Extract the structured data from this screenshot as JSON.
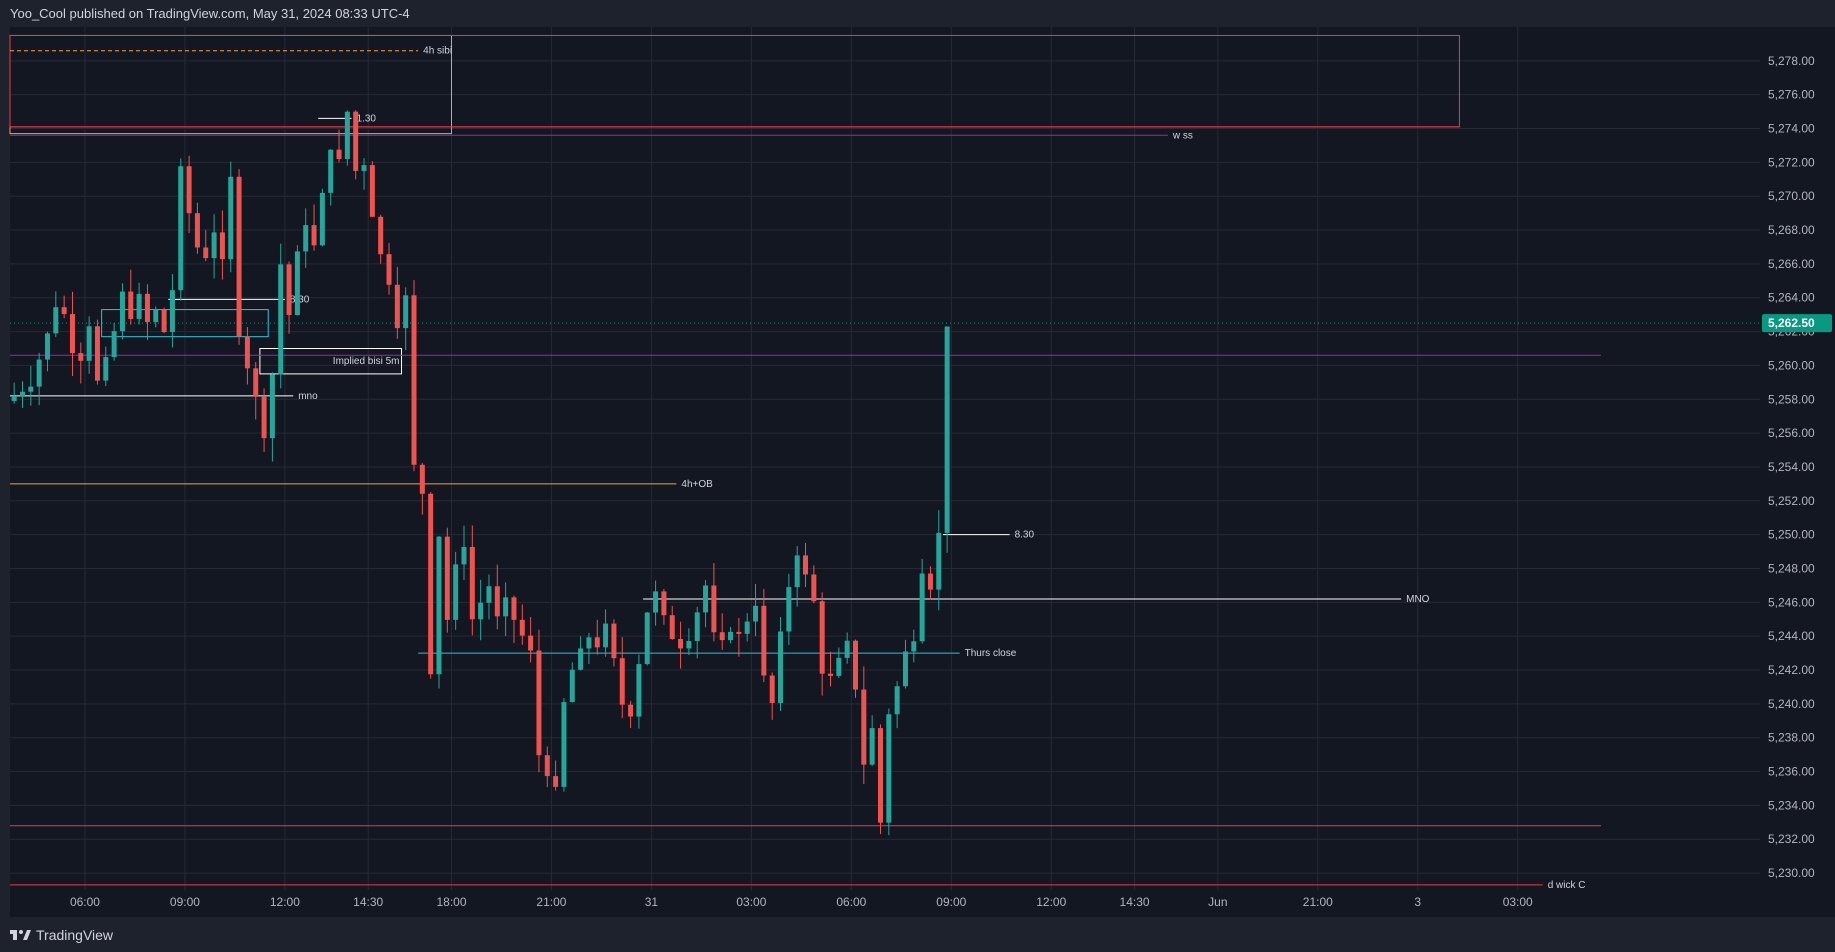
{
  "header": {
    "publisher_text": "Yoo_Cool published on TradingView.com, May 31, 2024 08:33 UTC-4"
  },
  "footer": {
    "brand": "TradingView"
  },
  "colors": {
    "background": "#131722",
    "up": "#26a69a",
    "down": "#ef5350",
    "grid": "#262a35",
    "price_tag": "#089981",
    "orange": "#f7a13b",
    "red": "#f23645",
    "purple": "#9c27b0",
    "white": "#ffffff",
    "teal": "#26c6da"
  },
  "chart_data": {
    "type": "candlestick",
    "symbol_last_price": "5,262.50",
    "ylim": [
      5229,
      5280
    ],
    "y_ticks": [
      "5,230.00",
      "5,232.00",
      "5,234.00",
      "5,236.00",
      "5,238.00",
      "5,240.00",
      "5,242.00",
      "5,244.00",
      "5,246.00",
      "5,248.00",
      "5,250.00",
      "5,252.00",
      "5,254.00",
      "5,256.00",
      "5,258.00",
      "5,260.00",
      "5,262.00",
      "5,264.00",
      "5,266.00",
      "5,268.00",
      "5,270.00",
      "5,272.00",
      "5,274.00",
      "5,276.00",
      "5,278.00"
    ],
    "x_ticks": [
      {
        "label": "06:00",
        "bar": 9
      },
      {
        "label": "09:00",
        "bar": 21
      },
      {
        "label": "12:00",
        "bar": 33
      },
      {
        "label": "14:30",
        "bar": 43
      },
      {
        "label": "18:00",
        "bar": 53
      },
      {
        "label": "21:00",
        "bar": 65
      },
      {
        "label": "31",
        "bar": 77
      },
      {
        "label": "03:00",
        "bar": 89
      },
      {
        "label": "06:00",
        "bar": 101
      },
      {
        "label": "09:00",
        "bar": 113
      },
      {
        "label": "12:00",
        "bar": 125
      },
      {
        "label": "14:30",
        "bar": 135
      },
      {
        "label": "Jun",
        "bar": 145
      },
      {
        "label": "21:00",
        "bar": 157
      },
      {
        "label": "3",
        "bar": 169
      },
      {
        "label": "03:00",
        "bar": 181
      }
    ],
    "bar_count": 191,
    "closes": [
      [
        0,
        5258.2
      ],
      [
        2,
        5259.0
      ],
      [
        4,
        5261.8
      ],
      [
        5,
        5263.6
      ],
      [
        6,
        5263.0
      ],
      [
        7,
        5261.0
      ],
      [
        8,
        5260.5
      ],
      [
        9,
        5262.5
      ],
      [
        10,
        5259.0
      ],
      [
        11,
        5260.2
      ],
      [
        12,
        5262.0
      ],
      [
        13,
        5264.2
      ],
      [
        14,
        5263.0
      ],
      [
        15,
        5264.0
      ],
      [
        16,
        5262.5
      ],
      [
        17,
        5263.2
      ],
      [
        18,
        5262.0
      ],
      [
        19,
        5264.5
      ],
      [
        20,
        5271.5
      ],
      [
        21,
        5269.0
      ],
      [
        22,
        5267.0
      ],
      [
        23,
        5266.5
      ],
      [
        24,
        5268.0
      ],
      [
        25,
        5266.0
      ],
      [
        26,
        5271.0
      ],
      [
        27,
        5262.0
      ],
      [
        28,
        5260.0
      ],
      [
        29,
        5258.0
      ],
      [
        30,
        5256.0
      ],
      [
        31,
        5259.5
      ],
      [
        32,
        5266.0
      ],
      [
        33,
        5263.0
      ],
      [
        34,
        5266.5
      ],
      [
        35,
        5268.5
      ],
      [
        36,
        5267.0
      ],
      [
        37,
        5270.0
      ],
      [
        38,
        5273.0
      ],
      [
        39,
        5272.0
      ],
      [
        40,
        5275.0
      ],
      [
        41,
        5271.5
      ],
      [
        42,
        5272.0
      ],
      [
        43,
        5269.0
      ],
      [
        44,
        5266.5
      ],
      [
        45,
        5265.0
      ],
      [
        46,
        5262.5
      ],
      [
        47,
        5264.0
      ],
      [
        48,
        5254.0
      ],
      [
        49,
        5252.5
      ],
      [
        50,
        5242.0
      ],
      [
        51,
        5250.0
      ],
      [
        52,
        5245.0
      ],
      [
        53,
        5248.0
      ],
      [
        54,
        5249.5
      ],
      [
        55,
        5245.0
      ],
      [
        56,
        5246.0
      ],
      [
        57,
        5247.0
      ],
      [
        58,
        5245.0
      ],
      [
        59,
        5246.0
      ],
      [
        60,
        5245.0
      ],
      [
        61,
        5244.0
      ],
      [
        62,
        5243.0
      ],
      [
        63,
        5237.0
      ],
      [
        64,
        5236.0
      ],
      [
        65,
        5234.8
      ],
      [
        66,
        5240.0
      ],
      [
        67,
        5242.0
      ],
      [
        68,
        5243.0
      ],
      [
        69,
        5244.0
      ],
      [
        70,
        5243.5
      ],
      [
        71,
        5244.5
      ],
      [
        72,
        5242.5
      ],
      [
        73,
        5240.0
      ],
      [
        74,
        5239.5
      ],
      [
        75,
        5242.5
      ],
      [
        76,
        5245.5
      ],
      [
        77,
        5246.5
      ],
      [
        78,
        5245.0
      ],
      [
        79,
        5244.0
      ],
      [
        80,
        5243.5
      ],
      [
        81,
        5244.0
      ],
      [
        82,
        5245.5
      ],
      [
        83,
        5247.0
      ],
      [
        84,
        5244.0
      ],
      [
        85,
        5243.5
      ],
      [
        86,
        5244.5
      ],
      [
        87,
        5244.0
      ],
      [
        88,
        5245.0
      ],
      [
        89,
        5246.0
      ],
      [
        90,
        5241.5
      ],
      [
        91,
        5240.0
      ],
      [
        92,
        5244.0
      ],
      [
        93,
        5247.0
      ],
      [
        94,
        5249.0
      ],
      [
        95,
        5247.5
      ],
      [
        96,
        5246.0
      ],
      [
        97,
        5242.0
      ],
      [
        98,
        5241.5
      ],
      [
        99,
        5242.5
      ],
      [
        100,
        5243.5
      ],
      [
        101,
        5241.0
      ],
      [
        102,
        5236.5
      ],
      [
        103,
        5238.5
      ],
      [
        104,
        5233.0
      ],
      [
        105,
        5239.5
      ],
      [
        106,
        5241.0
      ],
      [
        107,
        5243.0
      ],
      [
        108,
        5244.0
      ],
      [
        109,
        5248.0
      ],
      [
        110,
        5247.0
      ],
      [
        111,
        5250.0
      ],
      [
        112,
        5262.5
      ]
    ],
    "h_lines": [
      {
        "name": "4h-sibi",
        "price": 5278.6,
        "x0_bar": 0,
        "x1_bar": 49,
        "color": "orange",
        "dash": true,
        "label": "4h sibi"
      },
      {
        "name": "1-30",
        "price": 5274.6,
        "x0_bar": 37,
        "x1_bar": 41,
        "color": "white",
        "label": "1.30"
      },
      {
        "name": "w-ss",
        "price": 5273.6,
        "x0_bar": 0,
        "x1_bar": 139,
        "color": "purple",
        "label": "w ss"
      },
      {
        "name": "upper-red",
        "price": 5274.1,
        "x0_bar": 0,
        "x1_bar": 174,
        "color": "red",
        "label": ""
      },
      {
        "name": "8-30-a",
        "price": 5263.9,
        "x0_bar": 19,
        "x1_bar": 33,
        "color": "white",
        "label": "8.30"
      },
      {
        "name": "purple-mid",
        "price": 5260.6,
        "x0_bar": 0,
        "x1_bar": 191,
        "color": "purple",
        "label": ""
      },
      {
        "name": "mno-lower",
        "price": 5258.2,
        "x0_bar": 0,
        "x1_bar": 34,
        "color": "white",
        "label": "mno"
      },
      {
        "name": "4h-ob",
        "price": 5253.0,
        "x0_bar": 0,
        "x1_bar": 80,
        "color": "orange",
        "label": "4h+OB"
      },
      {
        "name": "8-30-b",
        "price": 5250.0,
        "x0_bar": 112,
        "x1_bar": 120,
        "color": "white",
        "label": "8.30"
      },
      {
        "name": "MNO",
        "price": 5246.2,
        "x0_bar": 76,
        "x1_bar": 167,
        "color": "white",
        "label": "MNO"
      },
      {
        "name": "thurs-close",
        "price": 5243.0,
        "x0_bar": 49,
        "x1_bar": 114,
        "color": "teal",
        "label": "Thurs close"
      },
      {
        "name": "lower-red",
        "price": 5232.8,
        "x0_bar": 0,
        "x1_bar": 191,
        "color": "red",
        "label": ""
      },
      {
        "name": "d-wick",
        "price": 5229.3,
        "x0_bar": 0,
        "x1_bar": 184,
        "color": "red",
        "label": "d wick C"
      }
    ],
    "boxes": [
      {
        "name": "implied-bisi-box",
        "x0_bar": 30,
        "x1_bar": 47,
        "p_top": 5261.0,
        "p_bot": 5259.5,
        "color": "white",
        "label": "Implied bisi 5m"
      },
      {
        "name": "teal-fvg-box",
        "x0_bar": 11,
        "x1_bar": 31,
        "p_top": 5263.3,
        "p_bot": 5261.7,
        "color": "teal",
        "label": ""
      },
      {
        "name": "red-orange-box",
        "x0_bar": 0,
        "x1_bar": 53,
        "p_top": 5279.5,
        "p_bot": 5273.7,
        "color": "orange",
        "label": ""
      },
      {
        "name": "red-right-box",
        "x0_bar": 0,
        "x1_bar": 174,
        "p_top": 5279.5,
        "p_bot": 5274.1,
        "color": "red",
        "label": ""
      }
    ]
  }
}
